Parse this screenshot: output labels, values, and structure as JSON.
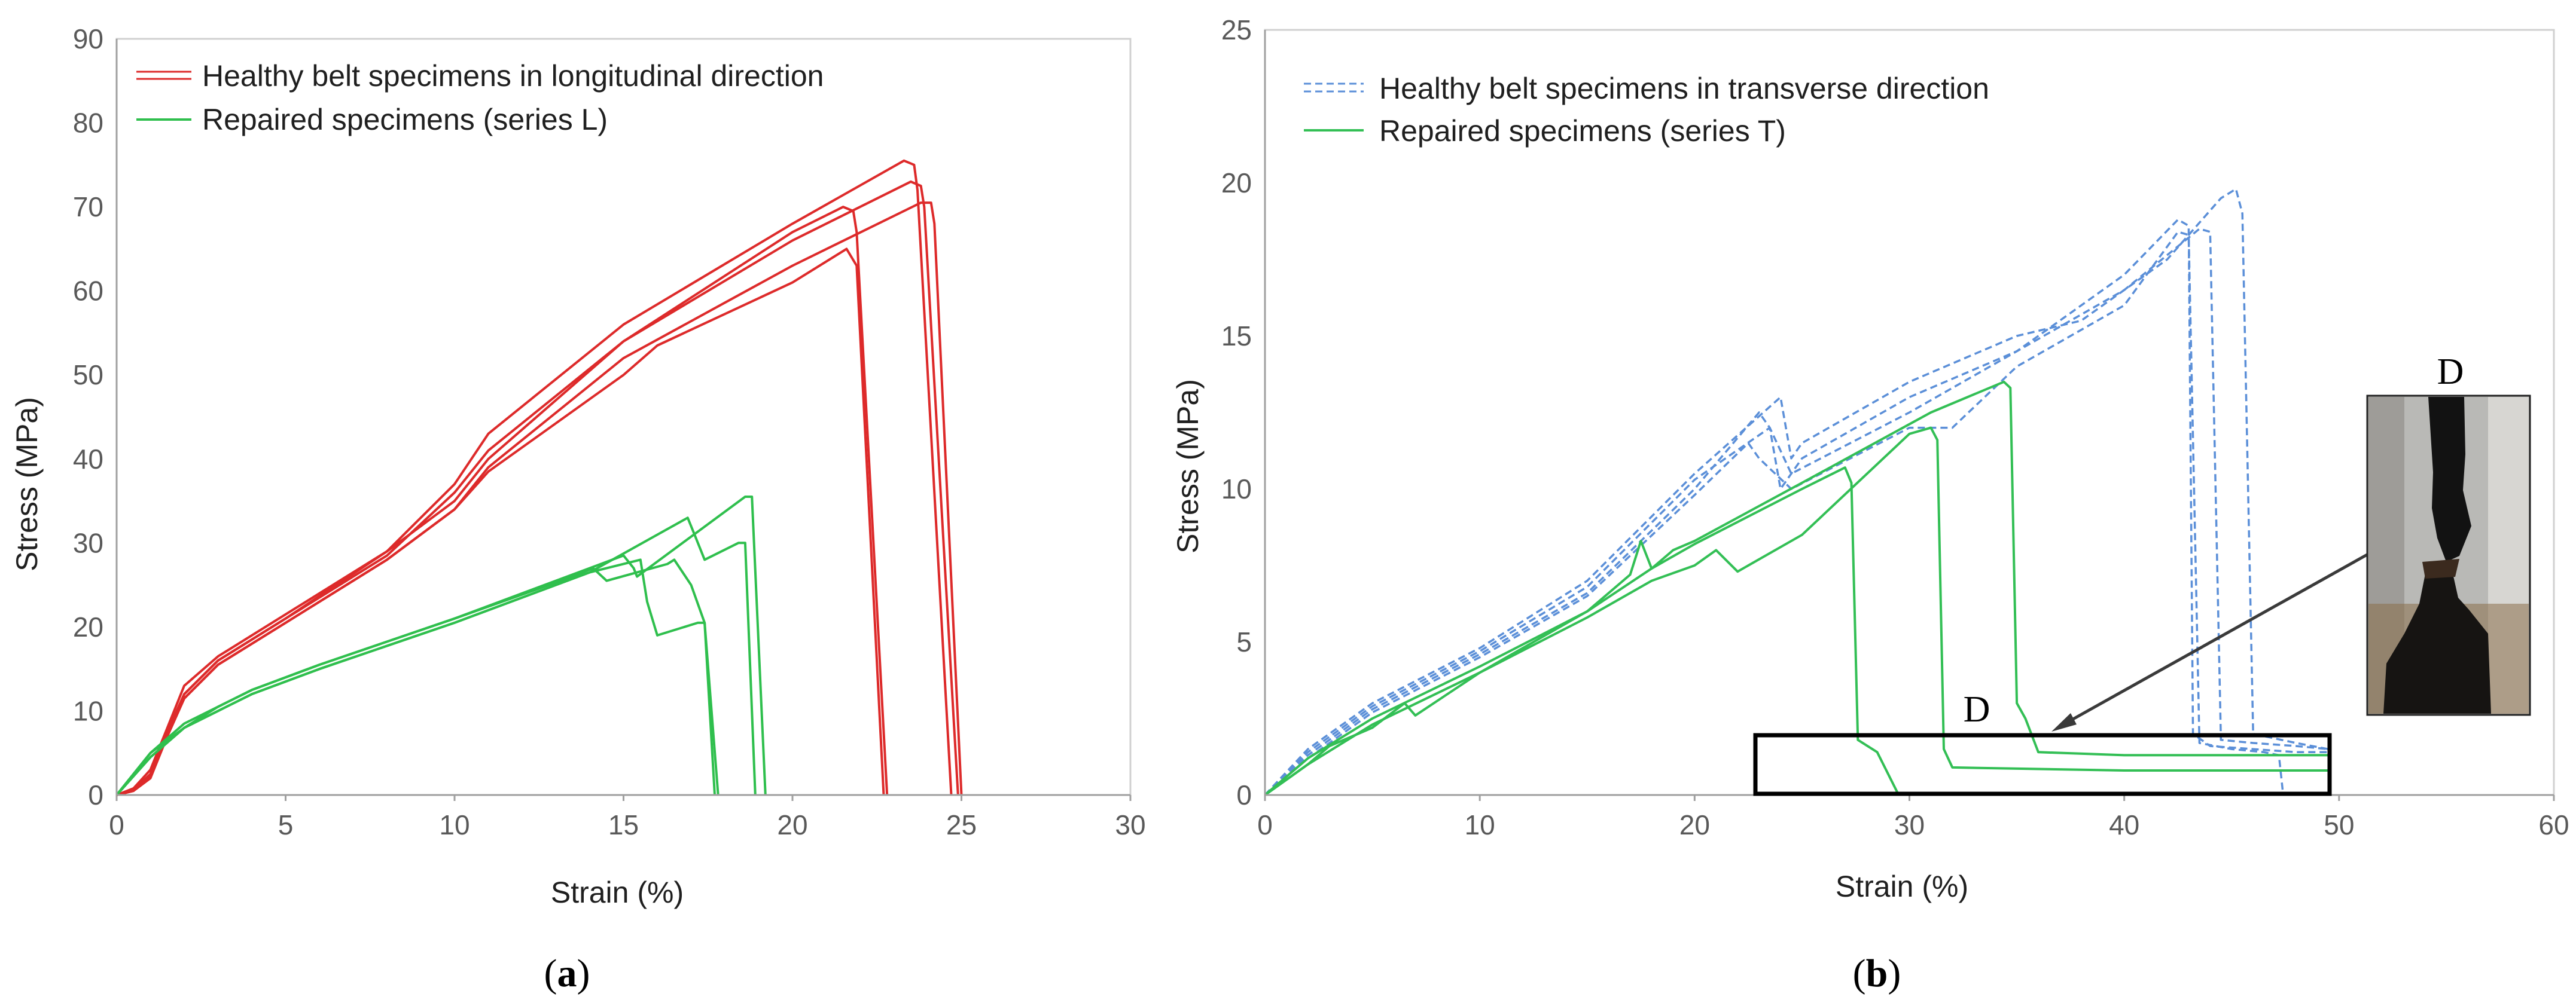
{
  "chart_data": [
    {
      "type": "line",
      "panel_label_open": "(",
      "panel_label": "a",
      "panel_label_close": ")",
      "xlabel": "Strain (%)",
      "ylabel": "Stress (MPa)",
      "xlim": [
        0,
        30
      ],
      "ylim": [
        0,
        90
      ],
      "xticks": [
        0,
        5,
        10,
        15,
        20,
        25,
        30
      ],
      "yticks": [
        0,
        10,
        20,
        30,
        40,
        50,
        60,
        70,
        80,
        90
      ],
      "legend_position": "top-left",
      "series_groups": [
        {
          "name": "Healthy belt specimens in longitudinal direction",
          "color": "#dd2a2a",
          "dash": "solid",
          "curves": [
            {
              "x": [
                0,
                0.5,
                1,
                1.5,
                2,
                3,
                5,
                8,
                10,
                11,
                15,
                20,
                23.3,
                23.6,
                23.7,
                24.7
              ],
              "y": [
                0,
                0.8,
                3,
                8,
                13,
                16.5,
                21.5,
                29,
                37,
                43,
                56,
                68,
                75.5,
                75,
                72,
                0
              ]
            },
            {
              "x": [
                0,
                0.5,
                1,
                1.5,
                2,
                3,
                5,
                8,
                10,
                11,
                15,
                20,
                23.5,
                23.8,
                23.9,
                24.9
              ],
              "y": [
                0,
                0.6,
                2.5,
                7.5,
                12,
                16,
                21,
                28.5,
                36,
                41,
                54,
                66,
                73,
                72.5,
                70,
                0
              ]
            },
            {
              "x": [
                0,
                0.5,
                1,
                1.5,
                2,
                3,
                5,
                8,
                10,
                11,
                15,
                20,
                23.8,
                24.1,
                24.2,
                25
              ],
              "y": [
                0,
                0.5,
                2,
                7,
                11.5,
                15.5,
                20.5,
                28,
                34,
                39,
                52,
                63,
                70.5,
                70.5,
                68,
                0
              ]
            },
            {
              "x": [
                0,
                0.5,
                1,
                1.5,
                2,
                3,
                5,
                8,
                10,
                11,
                15,
                20,
                21.5,
                21.8,
                21.9,
                22.8
              ],
              "y": [
                0,
                0.6,
                2.2,
                7.5,
                12,
                16,
                21,
                29,
                35,
                40,
                54,
                67,
                70,
                69.5,
                67,
                0
              ]
            },
            {
              "x": [
                0,
                0.5,
                1,
                1.5,
                2,
                3,
                5,
                8,
                10,
                11,
                15,
                16,
                20,
                21.6,
                21.9,
                22.7
              ],
              "y": [
                0,
                0.5,
                2.5,
                7,
                11.5,
                15.5,
                20.5,
                28,
                34,
                38.5,
                50,
                53.5,
                61,
                65,
                63,
                0
              ]
            }
          ]
        },
        {
          "name": "Repaired specimens (series L)",
          "color": "#2fbf4d",
          "dash": "solid",
          "curves": [
            {
              "x": [
                0,
                1,
                2,
                3,
                4,
                6,
                10,
                14,
                15,
                15.3,
                15.4,
                18.6,
                18.8,
                19.2
              ],
              "y": [
                0,
                5,
                8.5,
                10.5,
                12.5,
                15.5,
                21,
                27,
                28.5,
                27,
                26,
                35.5,
                35.5,
                0
              ]
            },
            {
              "x": [
                0,
                1,
                2,
                3,
                4,
                6,
                10,
                14,
                16.9,
                17.1,
                17.4,
                18.4,
                18.6,
                18.9
              ],
              "y": [
                0,
                4.5,
                8,
                10,
                12,
                15,
                20.5,
                26.5,
                33,
                31,
                28,
                30,
                30,
                0
              ]
            },
            {
              "x": [
                0,
                1,
                2,
                3,
                4,
                6,
                10,
                14,
                15.5,
                15.7,
                16,
                17.2,
                17.4,
                17.8
              ],
              "y": [
                0,
                4.5,
                8,
                10,
                12,
                15,
                20.5,
                26.5,
                28,
                23,
                19,
                20.5,
                20.5,
                0
              ]
            },
            {
              "x": [
                0,
                1,
                2,
                3,
                4,
                6,
                10,
                13.5,
                14.1,
                14.5,
                16.3,
                16.5,
                17,
                17.4,
                17.7
              ],
              "y": [
                0,
                5,
                8,
                10.5,
                12.5,
                15.5,
                21,
                26,
                27,
                25.5,
                27.5,
                28,
                25,
                20.5,
                0
              ]
            }
          ]
        }
      ]
    },
    {
      "type": "line",
      "panel_label_open": "(",
      "panel_label": "b",
      "panel_label_close": ")",
      "xlabel": "Strain (%)",
      "ylabel": "Stress (MPa)",
      "xlim": [
        0,
        60
      ],
      "ylim": [
        0,
        25
      ],
      "xticks": [
        0,
        10,
        20,
        30,
        40,
        50,
        60
      ],
      "yticks": [
        0,
        5,
        10,
        15,
        20,
        25
      ],
      "legend_position": "top-left",
      "series_groups": [
        {
          "name": "Healthy belt specimens in transverse direction",
          "color": "#5b8fd8",
          "dash": "dashed",
          "curves": [
            {
              "x": [
                0,
                2,
                5,
                10,
                15,
                20,
                24,
                24.5,
                25,
                30,
                35,
                38,
                42,
                44.5,
                45.2,
                45.5,
                46,
                48,
                49.5
              ],
              "y": [
                0,
                1.5,
                3,
                4.8,
                7,
                10.5,
                13,
                11,
                11.5,
                13.5,
                15,
                15.5,
                17.5,
                19.5,
                19.8,
                19,
                2,
                1.7,
                1.5
              ]
            },
            {
              "x": [
                0,
                2,
                5,
                10,
                15,
                20,
                23.5,
                24,
                25,
                30,
                35,
                40,
                43.5,
                44,
                44.5,
                46,
                48,
                49.5
              ],
              "y": [
                0,
                1.4,
                2.9,
                4.7,
                6.8,
                10.3,
                12,
                10,
                11,
                13,
                14.5,
                16.5,
                18.5,
                18.4,
                1.8,
                1.7,
                1.6,
                1.5
              ]
            },
            {
              "x": [
                0,
                2,
                5,
                10,
                15,
                20,
                23,
                23.5,
                24.5,
                30,
                35,
                40,
                42.5,
                43,
                43.2,
                44,
                46,
                48,
                49.5
              ],
              "y": [
                0,
                1.3,
                2.8,
                4.6,
                6.6,
                10,
                12.5,
                12,
                10.5,
                12.5,
                14.5,
                17,
                18.8,
                18.6,
                2,
                1.6,
                1.5,
                1.4,
                1.4
              ]
            },
            {
              "x": [
                0,
                2,
                5,
                10,
                15,
                20,
                22.5,
                23,
                24.5,
                30,
                32,
                35,
                40,
                42.5,
                43,
                43.5,
                45,
                46.5,
                47.2,
                47.4
              ],
              "y": [
                0,
                1.2,
                2.7,
                4.5,
                6.5,
                9.8,
                11.5,
                11,
                10,
                12,
                12,
                14,
                16,
                18.4,
                18.3,
                1.7,
                1.5,
                1.4,
                1.3,
                0
              ]
            }
          ]
        },
        {
          "name": "Repaired specimens (series T)",
          "color": "#33bf55",
          "dash": "solid",
          "curves": [
            {
              "x": [
                0,
                2,
                5,
                10,
                15,
                18,
                19,
                20,
                25,
                31,
                34.4,
                34.7,
                35,
                35.4,
                36,
                40,
                45,
                49.5
              ],
              "y": [
                0,
                1.2,
                2.5,
                4.2,
                6,
                7.4,
                8,
                8.3,
                10.2,
                12.5,
                13.5,
                13.3,
                3,
                2.5,
                1.4,
                1.3,
                1.3,
                1.3
              ]
            },
            {
              "x": [
                0,
                2,
                5,
                10,
                15,
                18,
                20,
                21,
                22,
                25,
                30,
                31,
                31.3,
                31.6,
                32,
                40,
                49.5
              ],
              "y": [
                0,
                1,
                2.3,
                4,
                5.8,
                7,
                7.5,
                8,
                7.3,
                8.5,
                11.8,
                12,
                11.6,
                1.5,
                0.9,
                0.8,
                0.8
              ]
            },
            {
              "x": [
                0,
                2,
                3,
                5,
                6.5,
                7,
                10,
                15,
                17,
                17.5,
                18,
                19,
                20,
                25,
                27,
                27.3,
                27.6,
                28.5,
                29.5
              ],
              "y": [
                0,
                1,
                1.6,
                2.2,
                3,
                2.6,
                4,
                6,
                7.2,
                8.3,
                7.4,
                7.8,
                8.2,
                10,
                10.7,
                10.2,
                1.8,
                1.4,
                0
              ]
            }
          ]
        }
      ],
      "inset": {
        "label": "D",
        "photo_caption": "D"
      }
    }
  ]
}
